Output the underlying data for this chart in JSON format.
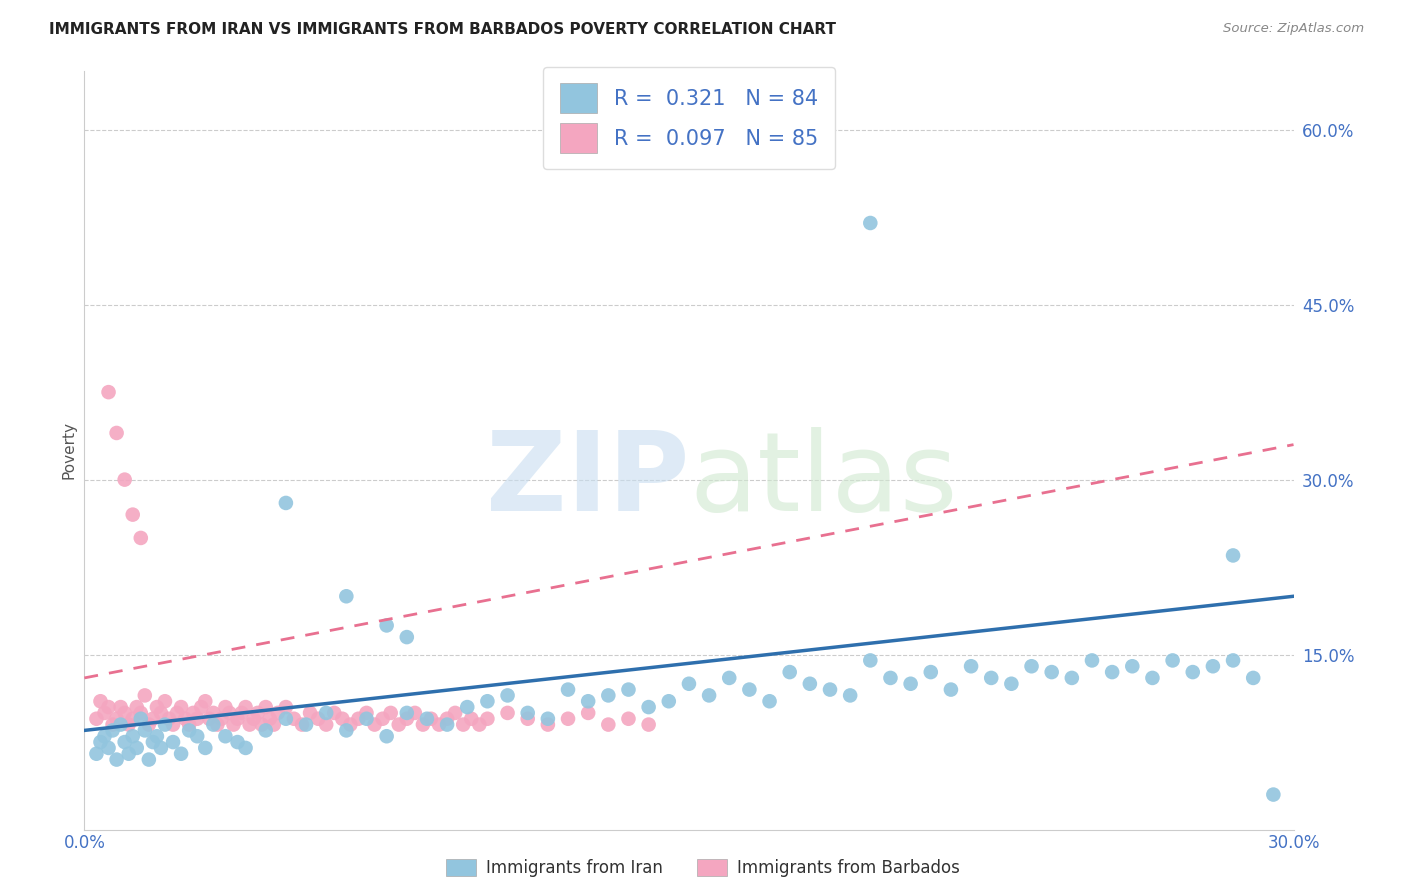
{
  "title": "IMMIGRANTS FROM IRAN VS IMMIGRANTS FROM BARBADOS POVERTY CORRELATION CHART",
  "source": "Source: ZipAtlas.com",
  "ylabel": "Poverty",
  "xlim": [
    0.0,
    0.3
  ],
  "ylim": [
    0.0,
    0.65
  ],
  "iran_color": "#92c5de",
  "barbados_color": "#f4a6c0",
  "iran_line_color": "#2e6fad",
  "barbados_line_color": "#e87090",
  "iran_R": 0.321,
  "iran_N": 84,
  "barbados_R": 0.097,
  "barbados_N": 85,
  "iran_line_x0": 0.0,
  "iran_line_y0": 0.085,
  "iran_line_x1": 0.3,
  "iran_line_y1": 0.2,
  "barbados_line_x0": 0.0,
  "barbados_line_y0": 0.13,
  "barbados_line_x1": 0.3,
  "barbados_line_y1": 0.33,
  "ytick_vals": [
    0.15,
    0.3,
    0.45,
    0.6
  ],
  "ytick_labels": [
    "15.0%",
    "30.0%",
    "45.0%",
    "60.0%"
  ],
  "iran_x": [
    0.003,
    0.004,
    0.005,
    0.006,
    0.007,
    0.008,
    0.009,
    0.01,
    0.011,
    0.012,
    0.013,
    0.014,
    0.015,
    0.016,
    0.017,
    0.018,
    0.019,
    0.02,
    0.022,
    0.024,
    0.026,
    0.028,
    0.03,
    0.032,
    0.035,
    0.038,
    0.04,
    0.045,
    0.05,
    0.055,
    0.06,
    0.065,
    0.07,
    0.075,
    0.08,
    0.085,
    0.09,
    0.095,
    0.1,
    0.105,
    0.11,
    0.115,
    0.12,
    0.125,
    0.13,
    0.135,
    0.14,
    0.145,
    0.15,
    0.155,
    0.16,
    0.165,
    0.17,
    0.175,
    0.18,
    0.185,
    0.19,
    0.195,
    0.2,
    0.205,
    0.21,
    0.215,
    0.22,
    0.225,
    0.23,
    0.235,
    0.24,
    0.245,
    0.25,
    0.255,
    0.26,
    0.265,
    0.27,
    0.275,
    0.28,
    0.285,
    0.29,
    0.195,
    0.05,
    0.065,
    0.075,
    0.08,
    0.285,
    0.295
  ],
  "iran_y": [
    0.065,
    0.075,
    0.08,
    0.07,
    0.085,
    0.06,
    0.09,
    0.075,
    0.065,
    0.08,
    0.07,
    0.095,
    0.085,
    0.06,
    0.075,
    0.08,
    0.07,
    0.09,
    0.075,
    0.065,
    0.085,
    0.08,
    0.07,
    0.09,
    0.08,
    0.075,
    0.07,
    0.085,
    0.095,
    0.09,
    0.1,
    0.085,
    0.095,
    0.08,
    0.1,
    0.095,
    0.09,
    0.105,
    0.11,
    0.115,
    0.1,
    0.095,
    0.12,
    0.11,
    0.115,
    0.12,
    0.105,
    0.11,
    0.125,
    0.115,
    0.13,
    0.12,
    0.11,
    0.135,
    0.125,
    0.12,
    0.115,
    0.145,
    0.13,
    0.125,
    0.135,
    0.12,
    0.14,
    0.13,
    0.125,
    0.14,
    0.135,
    0.13,
    0.145,
    0.135,
    0.14,
    0.13,
    0.145,
    0.135,
    0.14,
    0.145,
    0.13,
    0.52,
    0.28,
    0.2,
    0.175,
    0.165,
    0.235,
    0.03
  ],
  "barbados_x": [
    0.003,
    0.004,
    0.005,
    0.006,
    0.007,
    0.008,
    0.009,
    0.01,
    0.011,
    0.012,
    0.013,
    0.014,
    0.015,
    0.016,
    0.017,
    0.018,
    0.019,
    0.02,
    0.021,
    0.022,
    0.023,
    0.024,
    0.025,
    0.026,
    0.027,
    0.028,
    0.029,
    0.03,
    0.031,
    0.032,
    0.033,
    0.034,
    0.035,
    0.036,
    0.037,
    0.038,
    0.039,
    0.04,
    0.041,
    0.042,
    0.043,
    0.044,
    0.045,
    0.046,
    0.047,
    0.048,
    0.05,
    0.052,
    0.054,
    0.056,
    0.058,
    0.06,
    0.062,
    0.064,
    0.066,
    0.068,
    0.07,
    0.072,
    0.074,
    0.076,
    0.078,
    0.08,
    0.082,
    0.084,
    0.086,
    0.088,
    0.09,
    0.092,
    0.094,
    0.096,
    0.098,
    0.1,
    0.105,
    0.11,
    0.115,
    0.12,
    0.125,
    0.13,
    0.135,
    0.14,
    0.006,
    0.008,
    0.01,
    0.012,
    0.014
  ],
  "barbados_y": [
    0.095,
    0.11,
    0.1,
    0.105,
    0.09,
    0.095,
    0.105,
    0.1,
    0.09,
    0.095,
    0.105,
    0.1,
    0.115,
    0.09,
    0.095,
    0.105,
    0.1,
    0.11,
    0.095,
    0.09,
    0.1,
    0.105,
    0.095,
    0.09,
    0.1,
    0.095,
    0.105,
    0.11,
    0.095,
    0.1,
    0.09,
    0.095,
    0.105,
    0.1,
    0.09,
    0.095,
    0.1,
    0.105,
    0.09,
    0.095,
    0.1,
    0.09,
    0.105,
    0.095,
    0.09,
    0.1,
    0.105,
    0.095,
    0.09,
    0.1,
    0.095,
    0.09,
    0.1,
    0.095,
    0.09,
    0.095,
    0.1,
    0.09,
    0.095,
    0.1,
    0.09,
    0.095,
    0.1,
    0.09,
    0.095,
    0.09,
    0.095,
    0.1,
    0.09,
    0.095,
    0.09,
    0.095,
    0.1,
    0.095,
    0.09,
    0.095,
    0.1,
    0.09,
    0.095,
    0.09,
    0.375,
    0.34,
    0.3,
    0.27,
    0.25
  ]
}
